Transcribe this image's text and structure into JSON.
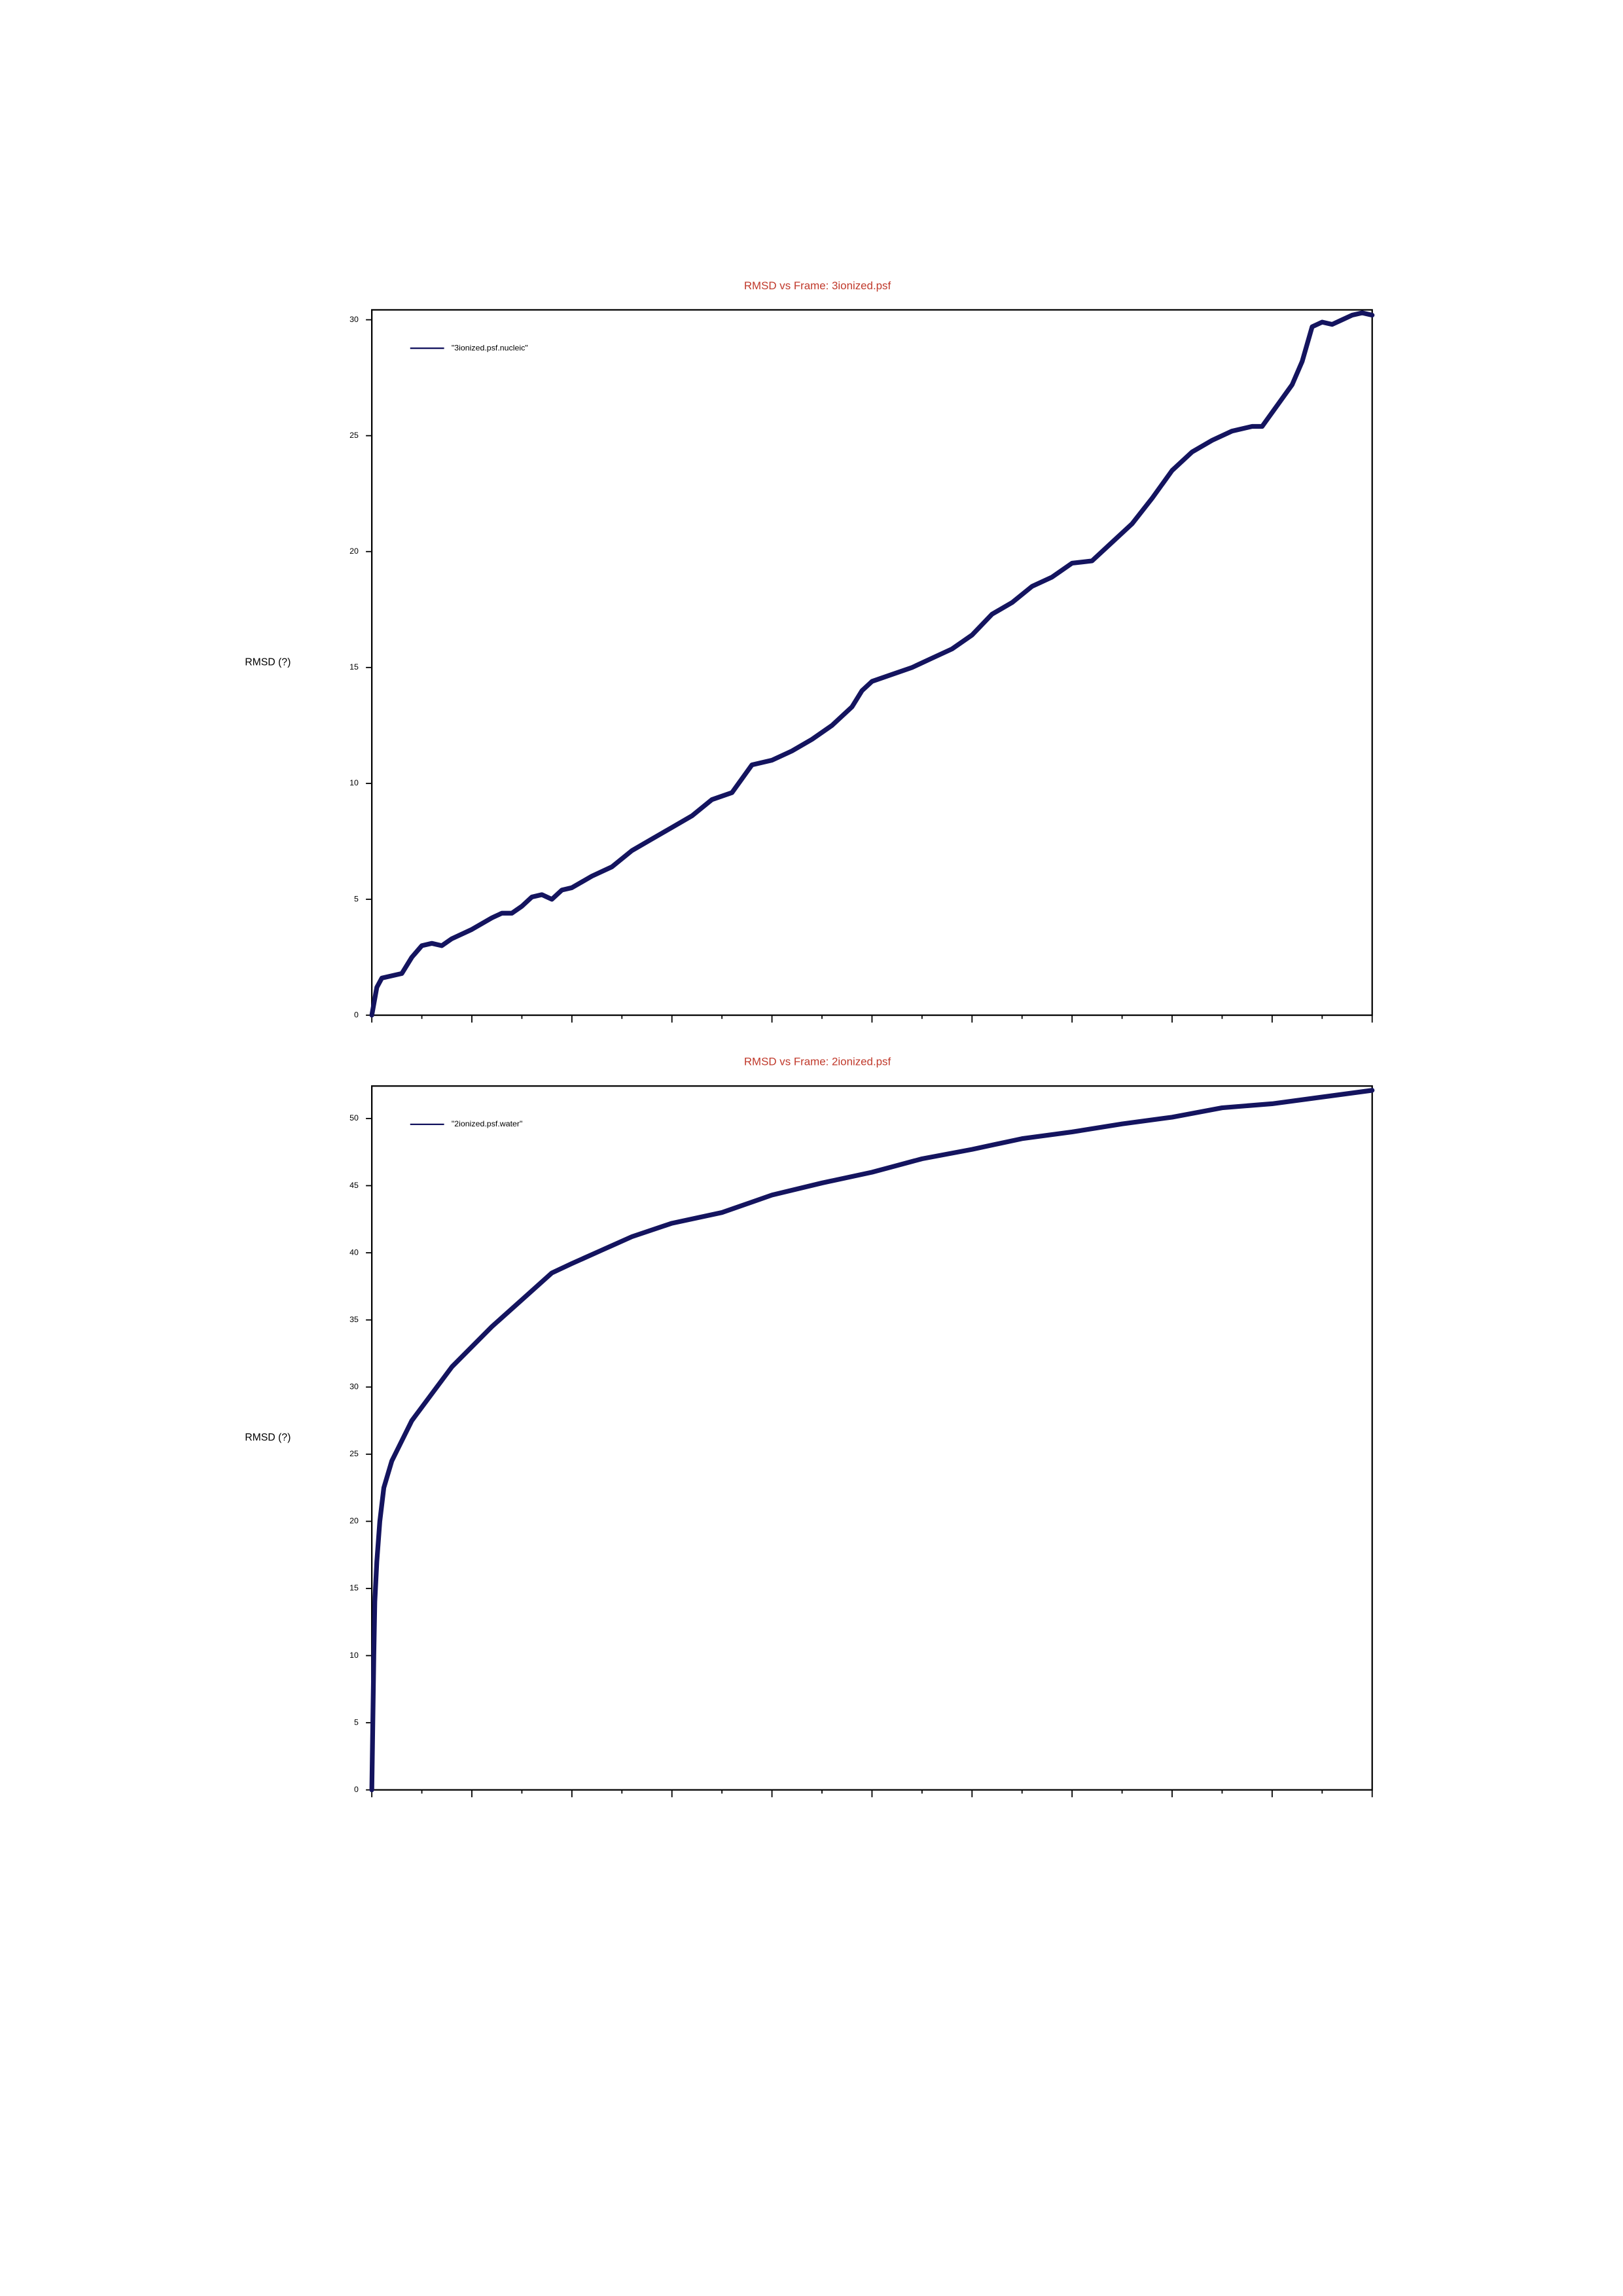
{
  "chart_data": [
    {
      "type": "line",
      "title": "RMSD vs Frame: 3ionized.psf",
      "ylabel": "RMSD (?)",
      "series": [
        {
          "name": "\"3ionized.psf.nucleic\"",
          "color": "#14145f",
          "x": [
            0,
            0.5,
            1,
            2,
            3,
            4,
            5,
            6,
            7,
            8,
            10,
            12,
            13,
            14,
            15,
            16,
            17,
            18,
            19,
            20,
            22,
            24,
            26,
            28,
            30,
            32,
            34,
            36,
            37,
            38,
            40,
            42,
            44,
            46,
            48,
            49,
            50,
            52,
            54,
            56,
            58,
            60,
            62,
            64,
            66,
            68,
            70,
            72,
            74,
            76,
            78,
            80,
            82,
            84,
            86,
            88,
            89,
            90,
            92,
            93,
            94,
            95,
            96,
            97,
            98,
            99,
            100
          ],
          "values": [
            0,
            1.2,
            1.6,
            1.7,
            1.8,
            2.5,
            3.0,
            3.1,
            3.0,
            3.3,
            3.7,
            4.2,
            4.4,
            4.4,
            4.7,
            5.1,
            5.2,
            5.0,
            5.4,
            5.5,
            6.0,
            6.4,
            7.1,
            7.6,
            8.1,
            8.6,
            9.3,
            9.6,
            10.2,
            10.8,
            11.0,
            11.4,
            11.9,
            12.5,
            13.3,
            14.0,
            14.4,
            14.7,
            15.0,
            15.4,
            15.8,
            16.4,
            17.3,
            17.8,
            18.5,
            18.9,
            19.5,
            19.6,
            20.4,
            21.2,
            22.3,
            23.5,
            24.3,
            24.8,
            25.2,
            25.4,
            25.4,
            26.0,
            27.2,
            28.2,
            29.7,
            29.9,
            29.8,
            30.0,
            30.2,
            30.3,
            30.2
          ]
        }
      ],
      "xlim": [
        0,
        100
      ],
      "ylim": [
        0,
        30.3
      ],
      "yticks": [
        0,
        5,
        10,
        15,
        20,
        25,
        30
      ]
    },
    {
      "type": "line",
      "title": "RMSD vs Frame: 2ionized.psf",
      "ylabel": "RMSD (?)",
      "series": [
        {
          "name": "\"2ionized.psf.water\"",
          "color": "#14145f",
          "x": [
            0,
            0.1,
            0.2,
            0.3,
            0.5,
            0.8,
            1.2,
            2,
            3,
            4,
            6,
            8,
            10,
            12,
            15,
            18,
            20,
            23,
            26,
            30,
            35,
            40,
            45,
            50,
            55,
            60,
            65,
            70,
            75,
            80,
            85,
            90,
            95,
            100
          ],
          "values": [
            0,
            5,
            10,
            14,
            17,
            20,
            22.5,
            24.5,
            26,
            27.5,
            29.5,
            31.5,
            33,
            34.5,
            36.5,
            38.5,
            39.2,
            40.2,
            41.2,
            42.2,
            43,
            44.3,
            45.2,
            46,
            47,
            47.7,
            48.5,
            49,
            49.6,
            50.1,
            50.8,
            51.1,
            51.6,
            52.1
          ]
        }
      ],
      "xlim": [
        0,
        100
      ],
      "ylim": [
        0,
        52.2
      ],
      "yticks": [
        0,
        5,
        10,
        15,
        20,
        25,
        30,
        35,
        40,
        45,
        50
      ]
    }
  ]
}
